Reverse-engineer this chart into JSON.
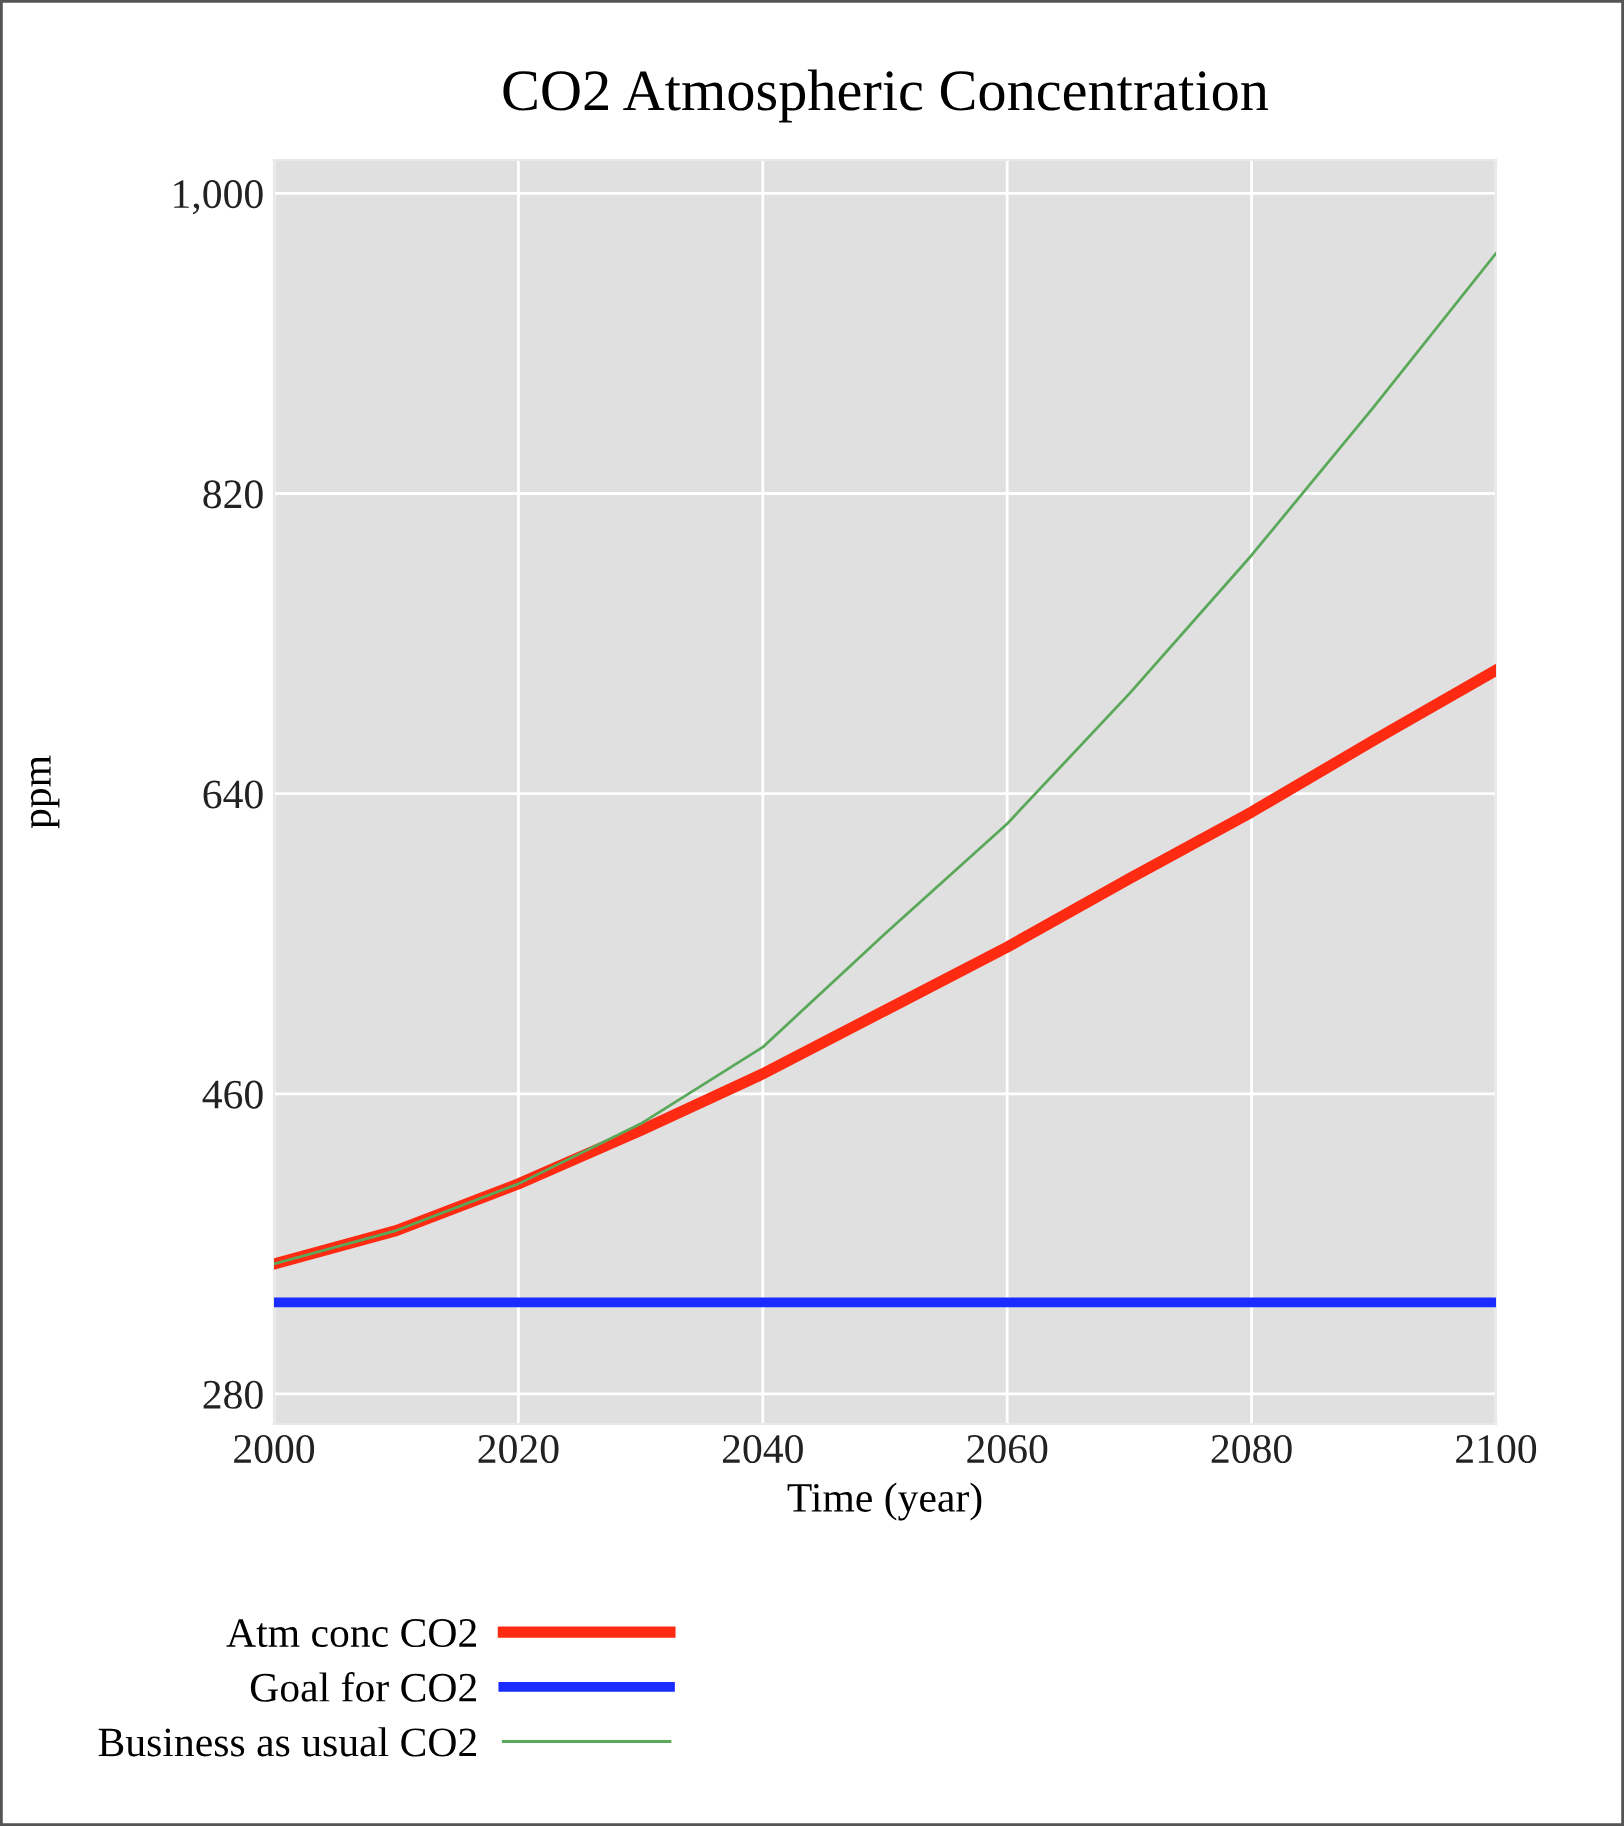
{
  "chart_data": {
    "type": "line",
    "title": "CO2 Atmospheric Concentration",
    "xlabel": "Time (year)",
    "ylabel": "ppm",
    "x": [
      2000,
      2010,
      2020,
      2030,
      2040,
      2050,
      2060,
      2070,
      2080,
      2090,
      2100
    ],
    "series": [
      {
        "name": "Atm conc CO2",
        "color": "#ff2a12",
        "values": [
          358,
          378,
          406,
          438,
          472,
          510,
          548,
          589,
          629,
          672,
          714
        ]
      },
      {
        "name": "Goal for CO2",
        "color": "#1a2cff",
        "values": [
          335,
          335,
          335,
          335,
          335,
          335,
          335,
          335,
          335,
          335,
          335
        ]
      },
      {
        "name": "Business as usual CO2",
        "color": "#5aa85a",
        "values": [
          358,
          378,
          406,
          442,
          488,
          556,
          622,
          700,
          783,
          872,
          964
        ]
      }
    ],
    "xlim": [
      2000,
      2100
    ],
    "xticks": [
      2000,
      2020,
      2040,
      2060,
      2080,
      2100
    ],
    "ylim": [
      262,
      1020
    ],
    "yticks": [
      {
        "value": 280,
        "label": "280"
      },
      {
        "value": 460,
        "label": "460"
      },
      {
        "value": 640,
        "label": "640"
      },
      {
        "value": 820,
        "label": "820"
      },
      {
        "value": 1000,
        "label": "1,000"
      }
    ],
    "grid": true,
    "legend": "bottom",
    "marker": "none",
    "line_style": "solid"
  }
}
